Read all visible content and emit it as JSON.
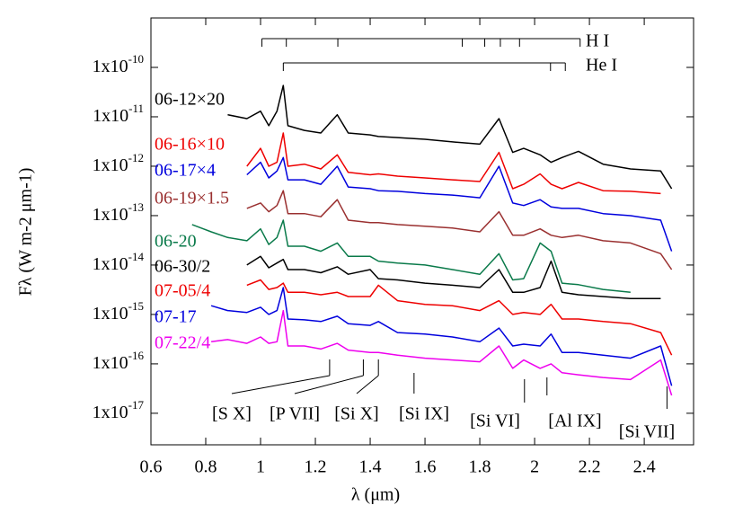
{
  "chart_data": {
    "type": "line",
    "xlabel": "λ (μm)",
    "ylabel": "Fλ (W m-2 μm-1)",
    "log_y": true,
    "xlim": [
      0.6,
      2.58
    ],
    "ylim": [
      2.3e-18,
      1e-09
    ],
    "xticks": [
      0.6,
      0.8,
      1,
      1.2,
      1.4,
      1.6,
      1.8,
      2,
      2.2,
      2.4
    ],
    "yticks": [
      {
        "value": 1e-17,
        "label": "1x10-17"
      },
      {
        "value": 1e-16,
        "label": "1x10-16"
      },
      {
        "value": 1e-15,
        "label": "1x10-15"
      },
      {
        "value": 1e-14,
        "label": "1x10-14"
      },
      {
        "value": 1e-13,
        "label": "1x10-13"
      },
      {
        "value": 1e-12,
        "label": "1x10-12"
      },
      {
        "value": 1e-11,
        "label": "1x10-11"
      },
      {
        "value": 1e-10,
        "label": "1x10-10"
      }
    ],
    "x": [
      0.75,
      0.82,
      0.88,
      0.95,
      1.0,
      1.03,
      1.06,
      1.083,
      1.1,
      1.16,
      1.22,
      1.28,
      1.32,
      1.4,
      1.43,
      1.5,
      1.6,
      1.7,
      1.8,
      1.87,
      1.92,
      1.96,
      2.02,
      2.06,
      2.1,
      2.16,
      2.25,
      2.35,
      2.46,
      2.5
    ],
    "series": [
      {
        "name": "06-12×20",
        "color": "#000000",
        "values": [
          null,
          null,
          1.1e-11,
          9.2e-12,
          1.3e-11,
          6.6e-12,
          1.3e-11,
          4.3e-11,
          6.6e-12,
          5.3e-12,
          4.7e-12,
          1.1e-11,
          4.7e-12,
          4.3e-12,
          4e-12,
          3.8e-12,
          3.5e-12,
          3.1e-12,
          2.8e-12,
          9.2e-12,
          1.9e-12,
          2.3e-12,
          1.7e-12,
          1.2e-12,
          1.5e-12,
          2e-12,
          1.1e-12,
          8.8e-13,
          8e-13,
          3.5e-13
        ]
      },
      {
        "name": "06-16×10",
        "color": "#ee0000",
        "values": [
          null,
          null,
          null,
          1e-12,
          2.3e-12,
          1e-12,
          1.2e-12,
          4.7e-12,
          1e-12,
          1.1e-12,
          8.8e-13,
          1.7e-12,
          7.5e-13,
          6.7e-13,
          7e-13,
          6.3e-13,
          5.8e-13,
          5.3e-13,
          4.9e-13,
          1.9e-12,
          3.5e-13,
          4.3e-13,
          7e-13,
          4.3e-13,
          3.5e-13,
          4.7e-13,
          3.2e-13,
          3.1e-13,
          2.8e-13,
          null
        ]
      },
      {
        "name": "06-17×4",
        "color": "#0000dd",
        "values": [
          null,
          null,
          null,
          6.7e-13,
          1.2e-12,
          5.8e-13,
          8e-13,
          1.5e-12,
          5.3e-13,
          5.3e-13,
          4.3e-13,
          1e-12,
          3.8e-13,
          3.5e-13,
          3.2e-13,
          3.1e-13,
          2.8e-13,
          2.6e-13,
          2.3e-13,
          1e-12,
          1.8e-13,
          1.6e-13,
          2.1e-13,
          1.5e-13,
          1.4e-13,
          1.4e-13,
          1.1e-13,
          1e-13,
          8.1e-14,
          1.9e-14
        ]
      },
      {
        "name": "06-19×1.5",
        "color": "#9a3030",
        "values": [
          null,
          null,
          null,
          1.4e-13,
          1.8e-13,
          1.2e-13,
          1.6e-13,
          3.2e-13,
          1.1e-13,
          1.1e-13,
          9.5e-14,
          2.1e-13,
          8.1e-14,
          7.2e-14,
          7.2e-14,
          6.6e-14,
          6.1e-14,
          5.6e-14,
          4.7e-14,
          1.2e-13,
          4e-14,
          4e-14,
          5.4e-14,
          4e-14,
          3.6e-14,
          4e-14,
          3.1e-14,
          2.8e-14,
          1.7e-14,
          8.1e-15
        ]
      },
      {
        "name": "06-20",
        "color": "#0a7a4a",
        "values": [
          6.6e-14,
          4.7e-14,
          3.6e-14,
          3.1e-14,
          5.4e-14,
          2.6e-14,
          3.6e-14,
          8.1e-14,
          2.4e-14,
          2.4e-14,
          1.9e-14,
          2.8e-14,
          1.5e-14,
          1.5e-14,
          1.2e-14,
          1.1e-14,
          1e-14,
          8.1e-15,
          6.5e-15,
          1.7e-14,
          5e-15,
          5.3e-15,
          2.8e-14,
          1.9e-14,
          4.3e-15,
          4e-15,
          3.2e-15,
          2.8e-15,
          null,
          null
        ]
      },
      {
        "name": "06-30/2",
        "color": "#000000",
        "values": [
          null,
          null,
          null,
          1e-14,
          1.5e-14,
          8.8e-15,
          1.1e-14,
          1.3e-14,
          8.1e-15,
          8.1e-15,
          7e-15,
          9.2e-15,
          6.5e-15,
          8.1e-15,
          5.3e-15,
          5e-15,
          4.3e-15,
          3.9e-15,
          3.5e-15,
          8.1e-15,
          2.8e-15,
          2.8e-15,
          3.5e-15,
          1.2e-14,
          2.8e-15,
          2.5e-15,
          2.3e-15,
          2.1e-15,
          2.1e-15,
          null
        ]
      },
      {
        "name": "07-05/4",
        "color": "#ee0000",
        "values": [
          null,
          null,
          null,
          3.9e-15,
          5e-15,
          3.2e-15,
          3.5e-15,
          4.3e-15,
          2.8e-15,
          2.8e-15,
          2.5e-15,
          2.8e-15,
          2.3e-15,
          2.3e-15,
          3.9e-15,
          1.9e-15,
          1.6e-15,
          1.5e-15,
          1.2e-15,
          1.9e-15,
          1e-15,
          1.1e-15,
          1e-15,
          1.6e-15,
          8.1e-16,
          8.1e-16,
          7.2e-16,
          6.5e-16,
          4.3e-16,
          1.5e-16
        ]
      },
      {
        "name": "07-17",
        "color": "#0000dd",
        "values": [
          null,
          1.5e-15,
          1.2e-15,
          1.1e-15,
          1.4e-15,
          1e-15,
          1.2e-15,
          3.5e-15,
          8.1e-16,
          7.8e-16,
          7.2e-16,
          9.2e-16,
          6.5e-16,
          6e-16,
          7.2e-16,
          4.3e-16,
          4e-16,
          3.5e-16,
          2.8e-16,
          5.3e-16,
          2.3e-16,
          2.5e-16,
          2.3e-16,
          4e-16,
          1.7e-16,
          1.7e-16,
          1.5e-16,
          1.3e-16,
          2.3e-16,
          3.6e-17
        ]
      },
      {
        "name": "07-22/4",
        "color": "#ee00ee",
        "values": [
          null,
          2.8e-16,
          3.1e-16,
          2.6e-16,
          3.5e-16,
          2.6e-16,
          2.8e-16,
          1.2e-15,
          2.3e-16,
          2.3e-16,
          2e-16,
          2.6e-16,
          1.9e-16,
          1.7e-16,
          1.7e-16,
          1.5e-16,
          1.3e-16,
          1.2e-16,
          1.1e-16,
          2.3e-16,
          8.1e-17,
          1.2e-16,
          8.1e-17,
          1e-16,
          6.6e-17,
          6e-17,
          5.3e-17,
          4.8e-17,
          1.2e-16,
          2.3e-17
        ]
      }
    ],
    "line_series": [
      {
        "label": "H I",
        "x": [
          1.005,
          1.094,
          1.282,
          1.736,
          1.818,
          1.875,
          1.945,
          2.166
        ]
      },
      {
        "label": "He I",
        "x": [
          1.083,
          2.058,
          2.112
        ]
      }
    ],
    "identifications": [
      {
        "label": "[S X]",
        "x": 1.252
      },
      {
        "label": "[P VII]",
        "x": 1.375
      },
      {
        "label": "[Si X]",
        "x": 1.43
      },
      {
        "label": "[Si IX]",
        "x": 1.56
      },
      {
        "label": "[Si VI]",
        "x": 1.963
      },
      {
        "label": "[Al IX]",
        "x": 2.045
      },
      {
        "label": "[Si VII]",
        "x": 2.483
      }
    ]
  }
}
